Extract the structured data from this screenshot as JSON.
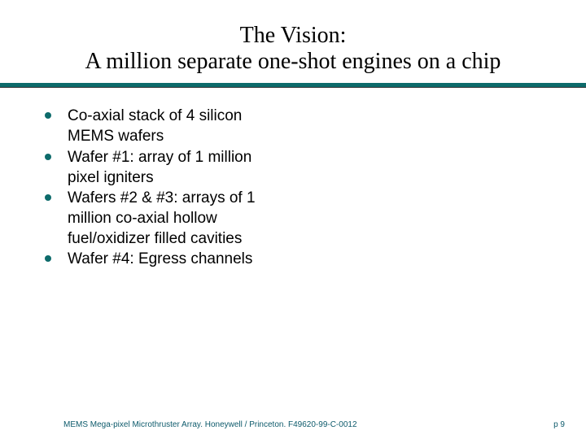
{
  "colors": {
    "rule": "#0d6b6b",
    "bullet": "#0d6b6b",
    "footer_text": "#0d5a6b"
  },
  "title": {
    "line1": "The Vision:",
    "line2": "A million separate one-shot engines on a chip"
  },
  "bullets": [
    "Co-axial stack of 4 silicon MEMS wafers",
    "Wafer #1:  array of 1 million pixel igniters",
    "Wafers #2 & #3:  arrays of 1 million co-axial hollow fuel/oxidizer filled cavities",
    "Wafer #4:  Egress channels"
  ],
  "footer": {
    "left": "MEMS Mega-pixel Microthruster Array.   Honeywell / Princeton.   F49620-99-C-0012",
    "right": "p 9"
  }
}
